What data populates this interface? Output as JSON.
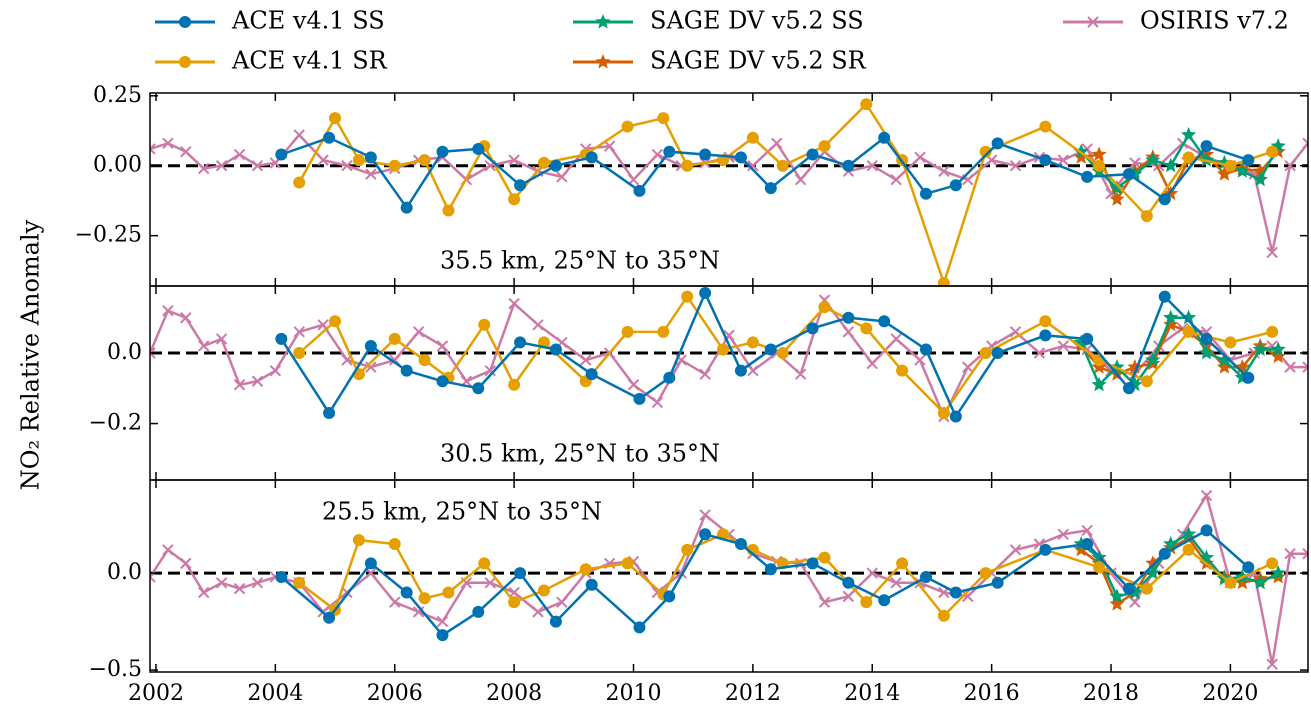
{
  "chart_data": [
    {
      "type": "line",
      "annotation": "35.5 km, 25°N to 35°N",
      "legend": "top",
      "reference_line": 0,
      "ylim": [
        -0.43,
        0.26
      ],
      "yticks": [
        0.25,
        {
          "value": 0,
          "label": "0.00"
        },
        {
          "value": -0.25,
          "label": "−0.25"
        }
      ],
      "series": [
        {
          "name": "ACE v4.1 SS",
          "color": "#0072b2",
          "marker": "circle",
          "x": [
            2004.1,
            2004.9,
            2005.6,
            2006.2,
            2006.8,
            2007.4,
            2008.1,
            2008.7,
            2009.3,
            2010.1,
            2010.6,
            2011.2,
            2011.8,
            2012.3,
            2013.0,
            2013.6,
            2014.2,
            2014.9,
            2015.4,
            2016.1,
            2016.9,
            2017.6,
            2018.3,
            2018.9,
            2019.6,
            2020.3
          ],
          "values": [
            0.04,
            0.1,
            0.03,
            -0.15,
            0.05,
            0.06,
            -0.07,
            0.0,
            0.03,
            -0.09,
            0.05,
            0.04,
            0.03,
            -0.08,
            0.04,
            0.0,
            0.1,
            -0.1,
            -0.07,
            0.08,
            0.02,
            -0.04,
            -0.03,
            -0.12,
            0.07,
            0.02
          ]
        },
        {
          "name": "ACE v4.1 SR",
          "color": "#e69f00",
          "marker": "circle",
          "x": [
            2004.4,
            2005.0,
            2005.4,
            2006.0,
            2006.5,
            2006.9,
            2007.5,
            2008.0,
            2008.5,
            2009.2,
            2009.9,
            2010.5,
            2010.9,
            2011.5,
            2012.0,
            2012.5,
            2013.2,
            2013.9,
            2014.5,
            2015.2,
            2015.9,
            2016.9,
            2017.8,
            2018.6,
            2019.3,
            2020.0,
            2020.7
          ],
          "values": [
            -0.06,
            0.17,
            0.02,
            0.0,
            0.02,
            -0.16,
            0.07,
            -0.12,
            0.01,
            0.04,
            0.14,
            0.17,
            0.0,
            0.02,
            0.1,
            0.0,
            0.07,
            0.22,
            0.02,
            -0.42,
            0.05,
            0.14,
            0.0,
            -0.18,
            0.03,
            0.0,
            0.05
          ]
        },
        {
          "name": "SAGE DV v5.2 SS",
          "color": "#009e73",
          "marker": "star",
          "x": [
            2017.5,
            2017.8,
            2018.1,
            2018.4,
            2018.7,
            2019.0,
            2019.3,
            2019.6,
            2019.9,
            2020.2,
            2020.5,
            2020.8
          ],
          "values": [
            0.05,
            -0.02,
            -0.08,
            -0.03,
            0.02,
            0.0,
            0.11,
            0.02,
            0.01,
            -0.02,
            -0.05,
            0.07
          ]
        },
        {
          "name": "SAGE DV v5.2 SR",
          "color": "#d55e00",
          "marker": "star",
          "x": [
            2017.5,
            2017.8,
            2018.1,
            2018.4,
            2018.7,
            2019.0,
            2019.3,
            2019.6,
            2019.9,
            2020.2,
            2020.5,
            2020.8
          ],
          "values": [
            0.03,
            0.04,
            -0.12,
            -0.02,
            0.03,
            -0.1,
            0.02,
            0.04,
            -0.03,
            -0.01,
            -0.02,
            0.05
          ]
        },
        {
          "name": "OSIRIS v7.2",
          "color": "#cc79a7",
          "marker": "x",
          "x": [
            2001.9,
            2002.2,
            2002.5,
            2002.8,
            2003.1,
            2003.4,
            2003.7,
            2004.0,
            2004.4,
            2004.8,
            2005.2,
            2005.6,
            2006.0,
            2006.4,
            2006.8,
            2007.2,
            2007.6,
            2008.0,
            2008.4,
            2008.8,
            2009.2,
            2009.6,
            2010.0,
            2010.4,
            2010.8,
            2011.2,
            2011.6,
            2012.0,
            2012.4,
            2012.8,
            2013.2,
            2013.6,
            2014.0,
            2014.4,
            2014.8,
            2015.2,
            2015.6,
            2016.0,
            2016.4,
            2016.8,
            2017.2,
            2017.6,
            2018.0,
            2018.4,
            2018.8,
            2019.2,
            2019.6,
            2020.0,
            2020.4,
            2020.7,
            2021.0,
            2021.3
          ],
          "values": [
            0.06,
            0.08,
            0.05,
            -0.01,
            0.0,
            0.04,
            0.0,
            0.01,
            0.11,
            0.02,
            0.0,
            -0.03,
            -0.01,
            0.02,
            0.03,
            -0.05,
            0.0,
            0.02,
            -0.02,
            -0.04,
            0.06,
            0.07,
            -0.05,
            0.04,
            0.0,
            0.01,
            0.03,
            0.0,
            0.08,
            -0.05,
            0.05,
            -0.02,
            0.0,
            -0.05,
            0.03,
            -0.02,
            -0.05,
            0.02,
            0.0,
            0.03,
            0.02,
            0.06,
            -0.1,
            0.01,
            0.0,
            0.08,
            0.03,
            0.0,
            -0.03,
            -0.31,
            0.0,
            0.08
          ]
        }
      ]
    },
    {
      "type": "line",
      "annotation": "30.5 km, 25°N to 35°N",
      "ylabel": "NO₂ Relative Anomaly",
      "reference_line": 0,
      "ylim": [
        -0.36,
        0.19
      ],
      "yticks": [
        {
          "value": 0,
          "label": "0.0"
        },
        {
          "value": -0.2,
          "label": "−0.2"
        }
      ],
      "series": [
        {
          "color": "#0072b2",
          "marker": "circle",
          "x": [
            2004.1,
            2004.9,
            2005.6,
            2006.2,
            2006.8,
            2007.4,
            2008.1,
            2008.7,
            2009.3,
            2010.1,
            2010.6,
            2011.2,
            2011.8,
            2012.3,
            2013.0,
            2013.6,
            2014.2,
            2014.9,
            2015.4,
            2016.1,
            2016.9,
            2017.6,
            2018.3,
            2018.9,
            2019.6,
            2020.3
          ],
          "values": [
            0.04,
            -0.17,
            0.02,
            -0.05,
            -0.08,
            -0.1,
            0.03,
            0.01,
            -0.06,
            -0.13,
            -0.07,
            0.17,
            -0.05,
            0.01,
            0.07,
            0.1,
            0.09,
            0.01,
            -0.18,
            0.0,
            0.05,
            0.04,
            -0.1,
            0.16,
            0.04,
            -0.07
          ]
        },
        {
          "color": "#e69f00",
          "marker": "circle",
          "x": [
            2004.4,
            2005.0,
            2005.4,
            2006.0,
            2006.5,
            2006.9,
            2007.5,
            2008.0,
            2008.5,
            2009.2,
            2009.9,
            2010.5,
            2010.9,
            2011.5,
            2012.0,
            2012.5,
            2013.2,
            2013.9,
            2014.5,
            2015.2,
            2015.9,
            2016.9,
            2017.8,
            2018.6,
            2019.3,
            2020.0,
            2020.7
          ],
          "values": [
            0.0,
            0.09,
            -0.06,
            0.04,
            -0.02,
            -0.07,
            0.08,
            -0.09,
            0.03,
            -0.08,
            0.06,
            0.06,
            0.16,
            0.01,
            0.03,
            0.0,
            0.13,
            0.07,
            -0.05,
            -0.17,
            0.0,
            0.09,
            -0.02,
            -0.08,
            0.06,
            0.03,
            0.06
          ]
        },
        {
          "color": "#009e73",
          "marker": "star",
          "x": [
            2017.5,
            2017.8,
            2018.1,
            2018.4,
            2018.7,
            2019.0,
            2019.3,
            2019.6,
            2019.9,
            2020.2,
            2020.5,
            2020.8
          ],
          "values": [
            0.03,
            -0.09,
            -0.04,
            -0.09,
            -0.02,
            0.1,
            0.1,
            0.0,
            -0.02,
            -0.07,
            0.01,
            0.01
          ]
        },
        {
          "color": "#d55e00",
          "marker": "star",
          "x": [
            2017.5,
            2017.8,
            2018.1,
            2018.4,
            2018.7,
            2019.0,
            2019.3,
            2019.6,
            2019.9,
            2020.2,
            2020.5,
            2020.8
          ],
          "values": [
            0.02,
            -0.04,
            -0.06,
            -0.04,
            -0.03,
            0.08,
            0.06,
            0.02,
            -0.04,
            -0.04,
            0.02,
            -0.01
          ]
        },
        {
          "color": "#cc79a7",
          "marker": "x",
          "x": [
            2001.9,
            2002.2,
            2002.5,
            2002.8,
            2003.1,
            2003.4,
            2003.7,
            2004.0,
            2004.4,
            2004.8,
            2005.2,
            2005.6,
            2006.0,
            2006.4,
            2006.8,
            2007.2,
            2007.6,
            2008.0,
            2008.4,
            2008.8,
            2009.2,
            2009.6,
            2010.0,
            2010.4,
            2010.8,
            2011.2,
            2011.6,
            2012.0,
            2012.4,
            2012.8,
            2013.2,
            2013.6,
            2014.0,
            2014.4,
            2014.8,
            2015.2,
            2015.6,
            2016.0,
            2016.4,
            2016.8,
            2017.2,
            2017.6,
            2018.0,
            2018.4,
            2018.8,
            2019.2,
            2019.6,
            2020.0,
            2020.4,
            2020.7,
            2021.0,
            2021.3
          ],
          "values": [
            0.0,
            0.12,
            0.1,
            0.02,
            0.04,
            -0.09,
            -0.08,
            -0.05,
            0.06,
            0.08,
            -0.02,
            -0.04,
            -0.02,
            0.06,
            0.02,
            -0.08,
            -0.05,
            0.14,
            0.08,
            0.03,
            -0.02,
            0.0,
            -0.09,
            -0.14,
            -0.02,
            -0.06,
            0.05,
            -0.05,
            0.0,
            -0.06,
            0.15,
            0.06,
            -0.03,
            0.04,
            -0.02,
            -0.18,
            -0.04,
            0.02,
            0.06,
            0.0,
            0.02,
            0.01,
            -0.05,
            -0.06,
            0.02,
            0.07,
            0.06,
            -0.02,
            0.0,
            0.02,
            -0.04,
            -0.04
          ]
        }
      ]
    },
    {
      "type": "line",
      "annotation": "25.5 km, 25°N to 35°N",
      "reference_line": 0,
      "ylim": [
        -0.51,
        0.48
      ],
      "yticks": [
        {
          "value": 0,
          "label": "0.0"
        },
        {
          "value": -0.5,
          "label": "−0.5"
        }
      ],
      "xlim": [
        2001.9,
        2021.3
      ],
      "xticks": [
        2002,
        2004,
        2006,
        2008,
        2010,
        2012,
        2014,
        2016,
        2018,
        2020
      ],
      "series": [
        {
          "color": "#0072b2",
          "marker": "circle",
          "x": [
            2004.1,
            2004.9,
            2005.6,
            2006.2,
            2006.8,
            2007.4,
            2008.1,
            2008.7,
            2009.3,
            2010.1,
            2010.6,
            2011.2,
            2011.8,
            2012.3,
            2013.0,
            2013.6,
            2014.2,
            2014.9,
            2015.4,
            2016.1,
            2016.9,
            2017.6,
            2018.3,
            2018.9,
            2019.6,
            2020.3
          ],
          "values": [
            -0.02,
            -0.23,
            0.05,
            -0.1,
            -0.32,
            -0.2,
            0.0,
            -0.25,
            -0.06,
            -0.28,
            -0.12,
            0.2,
            0.15,
            0.02,
            0.05,
            -0.05,
            -0.14,
            -0.02,
            -0.1,
            -0.05,
            0.12,
            0.15,
            -0.08,
            0.1,
            0.22,
            0.03
          ]
        },
        {
          "color": "#e69f00",
          "marker": "circle",
          "x": [
            2004.4,
            2005.0,
            2005.4,
            2006.0,
            2006.5,
            2006.9,
            2007.5,
            2008.0,
            2008.5,
            2009.2,
            2009.9,
            2010.5,
            2010.9,
            2011.5,
            2012.0,
            2012.5,
            2013.2,
            2013.9,
            2014.5,
            2015.2,
            2015.9,
            2016.9,
            2017.8,
            2018.6,
            2019.3,
            2020.0,
            2020.7
          ],
          "values": [
            -0.05,
            -0.19,
            0.17,
            0.15,
            -0.13,
            -0.1,
            0.05,
            -0.15,
            -0.09,
            0.02,
            0.05,
            -0.11,
            0.12,
            0.2,
            0.12,
            0.05,
            0.08,
            -0.15,
            0.05,
            -0.22,
            0.0,
            0.12,
            0.03,
            -0.08,
            0.12,
            -0.05,
            0.05
          ]
        },
        {
          "color": "#009e73",
          "marker": "star",
          "x": [
            2017.5,
            2017.8,
            2018.1,
            2018.4,
            2018.7,
            2019.0,
            2019.3,
            2019.6,
            2019.9,
            2020.2,
            2020.5,
            2020.8
          ],
          "values": [
            0.15,
            0.08,
            -0.12,
            -0.1,
            0.0,
            0.15,
            0.2,
            0.08,
            -0.03,
            -0.02,
            -0.05,
            0.0
          ]
        },
        {
          "color": "#d55e00",
          "marker": "star",
          "x": [
            2017.5,
            2017.8,
            2018.1,
            2018.4,
            2018.7,
            2019.0,
            2019.3,
            2019.6,
            2019.9,
            2020.2,
            2020.5,
            2020.8
          ],
          "values": [
            0.12,
            0.05,
            -0.16,
            -0.1,
            0.05,
            0.13,
            0.18,
            0.05,
            -0.02,
            -0.05,
            -0.03,
            -0.02
          ]
        },
        {
          "color": "#cc79a7",
          "marker": "x",
          "x": [
            2001.9,
            2002.2,
            2002.5,
            2002.8,
            2003.1,
            2003.4,
            2003.7,
            2004.0,
            2004.4,
            2004.8,
            2005.2,
            2005.6,
            2006.0,
            2006.4,
            2006.8,
            2007.2,
            2007.6,
            2008.0,
            2008.4,
            2008.8,
            2009.2,
            2009.6,
            2010.0,
            2010.4,
            2010.8,
            2011.2,
            2011.6,
            2012.0,
            2012.4,
            2012.8,
            2013.2,
            2013.6,
            2014.0,
            2014.4,
            2014.8,
            2015.2,
            2015.6,
            2016.0,
            2016.4,
            2016.8,
            2017.2,
            2017.6,
            2018.0,
            2018.4,
            2018.8,
            2019.2,
            2019.6,
            2020.0,
            2020.4,
            2020.7,
            2021.0,
            2021.3
          ],
          "values": [
            -0.02,
            0.12,
            0.05,
            -0.1,
            -0.05,
            -0.08,
            -0.05,
            -0.02,
            -0.05,
            -0.2,
            -0.1,
            0.0,
            -0.15,
            -0.2,
            -0.25,
            -0.05,
            -0.05,
            -0.1,
            -0.2,
            -0.15,
            0.0,
            0.05,
            0.06,
            -0.1,
            0.0,
            0.3,
            0.2,
            0.1,
            0.06,
            0.05,
            -0.15,
            -0.12,
            0.0,
            -0.05,
            -0.05,
            -0.1,
            -0.12,
            0.0,
            0.12,
            0.15,
            0.2,
            0.22,
            0.0,
            -0.15,
            0.05,
            0.2,
            0.4,
            -0.05,
            0.0,
            -0.47,
            0.1,
            0.1
          ]
        }
      ]
    }
  ]
}
